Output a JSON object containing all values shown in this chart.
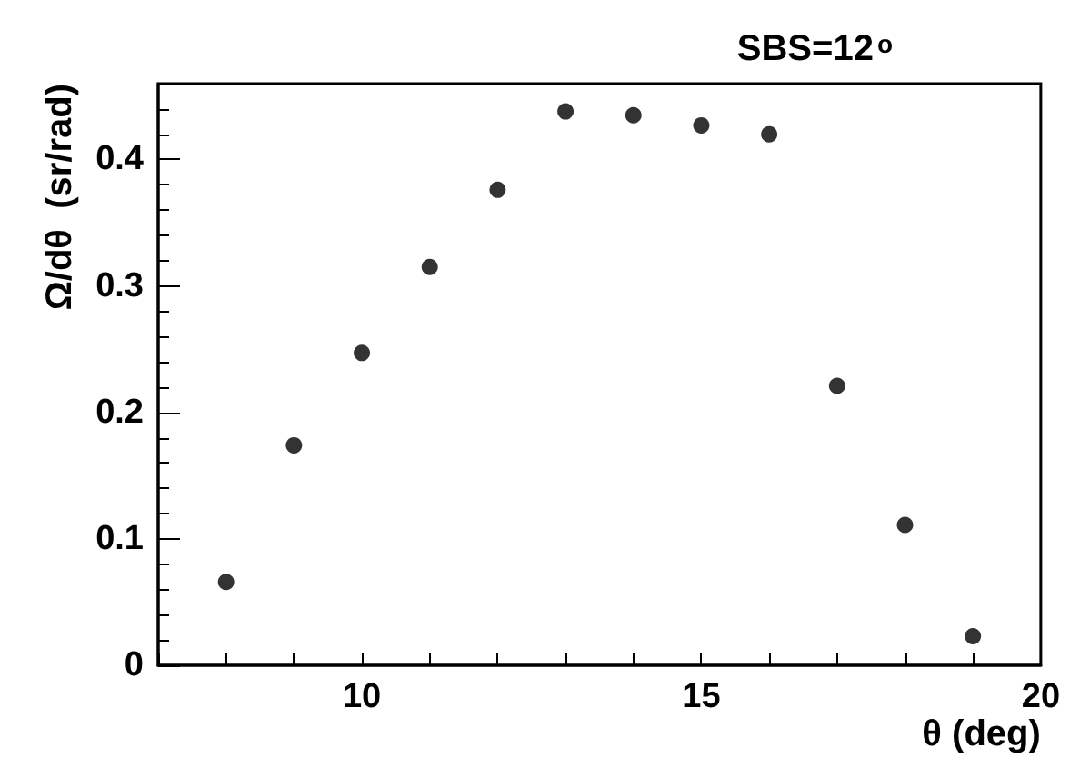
{
  "chart_data": {
    "type": "scatter",
    "title": "SBS=12$^{o}$",
    "xlabel": "θ (deg)",
    "ylabel": "Ω/dθ  (sr/rad)",
    "x": [
      8,
      9,
      10,
      11,
      12,
      13,
      14,
      15,
      16,
      17,
      18,
      19
    ],
    "values": [
      0.066,
      0.174,
      0.247,
      0.315,
      0.376,
      0.438,
      0.435,
      0.427,
      0.42,
      0.221,
      0.111,
      0.023
    ],
    "color": "#000000",
    "marker": "circle",
    "xlim": [
      7,
      20
    ],
    "xticks": [
      {
        "value": 7,
        "label": null
      },
      {
        "value": 8,
        "label": null
      },
      {
        "value": 9,
        "label": null
      },
      10,
      {
        "value": 11,
        "label": null
      },
      {
        "value": 12,
        "label": null
      },
      {
        "value": 13,
        "label": null
      },
      {
        "value": 14,
        "label": null
      },
      15,
      {
        "value": 16,
        "label": null
      },
      {
        "value": 17,
        "label": null
      },
      {
        "value": 18,
        "label": null
      },
      {
        "value": 19,
        "label": null
      },
      20
    ],
    "ylim": [
      0,
      0.46
    ],
    "yticks": [
      0,
      0.1,
      0.2,
      0.3,
      0.4
    ],
    "grid": false
  }
}
